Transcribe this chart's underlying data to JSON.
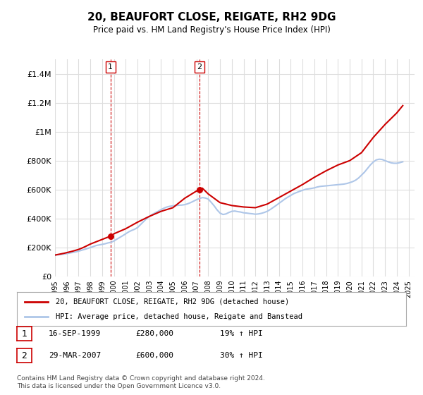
{
  "title": "20, BEAUFORT CLOSE, REIGATE, RH2 9DG",
  "subtitle": "Price paid vs. HM Land Registry's House Price Index (HPI)",
  "legend_line1": "20, BEAUFORT CLOSE, REIGATE, RH2 9DG (detached house)",
  "legend_line2": "HPI: Average price, detached house, Reigate and Banstead",
  "footer": "Contains HM Land Registry data © Crown copyright and database right 2024.\nThis data is licensed under the Open Government Licence v3.0.",
  "transactions": [
    {
      "label": "1",
      "date": "16-SEP-1999",
      "price": 280000,
      "pct": "19% ↑ HPI",
      "year": 1999.71
    },
    {
      "label": "2",
      "date": "29-MAR-2007",
      "price": 600000,
      "pct": "30% ↑ HPI",
      "year": 2007.24
    }
  ],
  "hpi_color": "#aec6e8",
  "price_color": "#cc0000",
  "vline_color": "#cc0000",
  "background_color": "#ffffff",
  "plot_bg_color": "#ffffff",
  "grid_color": "#dddddd",
  "ylim": [
    0,
    1500000
  ],
  "xlim_start": 1995.0,
  "xlim_end": 2025.5,
  "hpi_x": [
    1995.0,
    1995.25,
    1995.5,
    1995.75,
    1996.0,
    1996.25,
    1996.5,
    1996.75,
    1997.0,
    1997.25,
    1997.5,
    1997.75,
    1998.0,
    1998.25,
    1998.5,
    1998.75,
    1999.0,
    1999.25,
    1999.5,
    1999.75,
    2000.0,
    2000.25,
    2000.5,
    2000.75,
    2001.0,
    2001.25,
    2001.5,
    2001.75,
    2002.0,
    2002.25,
    2002.5,
    2002.75,
    2003.0,
    2003.25,
    2003.5,
    2003.75,
    2004.0,
    2004.25,
    2004.5,
    2004.75,
    2005.0,
    2005.25,
    2005.5,
    2005.75,
    2006.0,
    2006.25,
    2006.5,
    2006.75,
    2007.0,
    2007.25,
    2007.5,
    2007.75,
    2008.0,
    2008.25,
    2008.5,
    2008.75,
    2009.0,
    2009.25,
    2009.5,
    2009.75,
    2010.0,
    2010.25,
    2010.5,
    2010.75,
    2011.0,
    2011.25,
    2011.5,
    2011.75,
    2012.0,
    2012.25,
    2012.5,
    2012.75,
    2013.0,
    2013.25,
    2013.5,
    2013.75,
    2014.0,
    2014.25,
    2014.5,
    2014.75,
    2015.0,
    2015.25,
    2015.5,
    2015.75,
    2016.0,
    2016.25,
    2016.5,
    2016.75,
    2017.0,
    2017.25,
    2017.5,
    2017.75,
    2018.0,
    2018.25,
    2018.5,
    2018.75,
    2019.0,
    2019.25,
    2019.5,
    2019.75,
    2020.0,
    2020.25,
    2020.5,
    2020.75,
    2021.0,
    2021.25,
    2021.5,
    2021.75,
    2022.0,
    2022.25,
    2022.5,
    2022.75,
    2023.0,
    2023.25,
    2023.5,
    2023.75,
    2024.0,
    2024.25,
    2024.5
  ],
  "hpi_y": [
    148000,
    150000,
    152000,
    155000,
    158000,
    162000,
    166000,
    170000,
    175000,
    181000,
    187000,
    193000,
    200000,
    207000,
    214000,
    218000,
    222000,
    226000,
    232000,
    236000,
    245000,
    258000,
    270000,
    282000,
    295000,
    308000,
    318000,
    326000,
    338000,
    358000,
    378000,
    398000,
    415000,
    428000,
    440000,
    450000,
    462000,
    472000,
    480000,
    485000,
    488000,
    490000,
    492000,
    493000,
    496000,
    502000,
    510000,
    520000,
    530000,
    538000,
    545000,
    542000,
    535000,
    512000,
    488000,
    460000,
    438000,
    428000,
    432000,
    442000,
    450000,
    452000,
    448000,
    445000,
    440000,
    438000,
    435000,
    433000,
    430000,
    432000,
    436000,
    442000,
    450000,
    462000,
    476000,
    490000,
    505000,
    520000,
    535000,
    548000,
    560000,
    572000,
    580000,
    588000,
    595000,
    602000,
    605000,
    608000,
    612000,
    618000,
    622000,
    624000,
    626000,
    628000,
    630000,
    632000,
    634000,
    636000,
    638000,
    642000,
    648000,
    655000,
    665000,
    680000,
    700000,
    720000,
    745000,
    770000,
    790000,
    805000,
    810000,
    808000,
    800000,
    792000,
    785000,
    782000,
    782000,
    786000,
    792000
  ],
  "price_x": [
    1995.0,
    1995.25,
    1995.5,
    1995.75,
    1996.0,
    1996.25,
    1996.5,
    1996.75,
    1997.0,
    1997.25,
    1997.5,
    1997.75,
    1998.0,
    1998.25,
    1998.5,
    1998.75,
    1999.0,
    1999.25,
    1999.5,
    1999.75,
    2000.0,
    2001.0,
    2002.0,
    2003.0,
    2004.0,
    2005.0,
    2006.0,
    2007.0,
    2007.24,
    2007.5,
    2008.0,
    2009.0,
    2010.0,
    2011.0,
    2012.0,
    2013.0,
    2014.0,
    2015.0,
    2016.0,
    2017.0,
    2018.0,
    2019.0,
    2020.0,
    2021.0,
    2022.0,
    2023.0,
    2024.0,
    2024.5
  ],
  "price_y": [
    148000,
    152000,
    156000,
    160000,
    165000,
    170000,
    175000,
    181000,
    187000,
    195000,
    204000,
    214000,
    224000,
    232000,
    240000,
    248000,
    256000,
    264000,
    272000,
    280000,
    295000,
    330000,
    375000,
    415000,
    450000,
    475000,
    540000,
    590000,
    600000,
    610000,
    570000,
    510000,
    490000,
    480000,
    475000,
    500000,
    545000,
    590000,
    635000,
    685000,
    730000,
    770000,
    800000,
    855000,
    960000,
    1050000,
    1130000,
    1180000
  ]
}
